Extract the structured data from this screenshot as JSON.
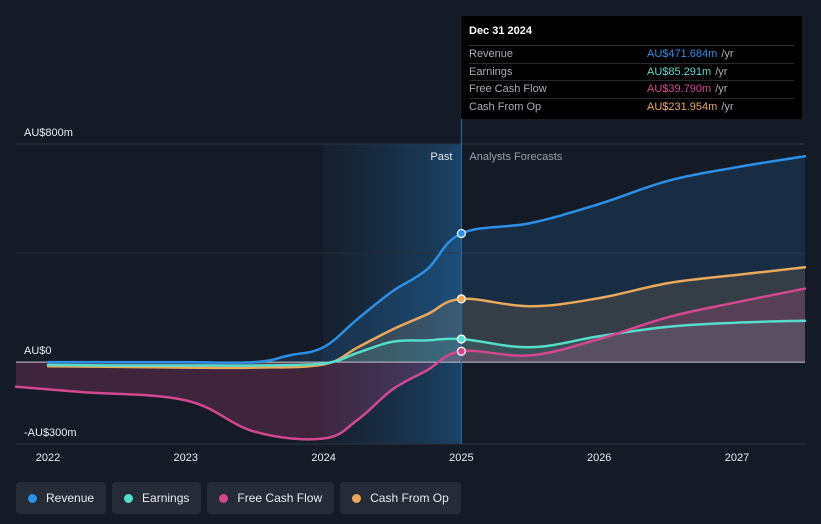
{
  "chart_data": {
    "type": "area",
    "title": "",
    "xlabel": "",
    "ylabel": "",
    "ylim": [
      -300,
      800
    ],
    "divider_x": 2025.0,
    "past_label": "Past",
    "forecast_label": "Analysts Forecasts",
    "y_ticks": [
      {
        "value": 800,
        "label": "AU$800m"
      },
      {
        "value": 0,
        "label": "AU$0"
      },
      {
        "value": -300,
        "label": "-AU$300m"
      }
    ],
    "x_ticks": [
      {
        "value": 2022,
        "label": "2022"
      },
      {
        "value": 2023,
        "label": "2023"
      },
      {
        "value": 2024,
        "label": "2024"
      },
      {
        "value": 2025,
        "label": "2025"
      },
      {
        "value": 2026,
        "label": "2026"
      },
      {
        "value": 2027,
        "label": "2027"
      }
    ],
    "series": [
      {
        "name": "Revenue",
        "key": "revenue",
        "color": "#2d8fe6",
        "points": [
          [
            2022.0,
            0
          ],
          [
            2022.5,
            0
          ],
          [
            2023.0,
            0
          ],
          [
            2023.5,
            0
          ],
          [
            2023.75,
            25
          ],
          [
            2024.0,
            55
          ],
          [
            2024.25,
            160
          ],
          [
            2024.5,
            260
          ],
          [
            2024.75,
            340
          ],
          [
            2025.0,
            472
          ],
          [
            2025.5,
            510
          ],
          [
            2026.0,
            580
          ],
          [
            2026.5,
            665
          ],
          [
            2027.0,
            715
          ],
          [
            2027.5,
            755
          ]
        ]
      },
      {
        "name": "Cash From Op",
        "key": "cfo",
        "color": "#e8a95c",
        "points": [
          [
            2022.0,
            -15
          ],
          [
            2022.5,
            -17
          ],
          [
            2023.0,
            -20
          ],
          [
            2023.5,
            -20
          ],
          [
            2024.0,
            -8
          ],
          [
            2024.25,
            55
          ],
          [
            2024.5,
            120
          ],
          [
            2024.75,
            175
          ],
          [
            2025.0,
            232
          ],
          [
            2025.5,
            205
          ],
          [
            2026.0,
            235
          ],
          [
            2026.5,
            290
          ],
          [
            2027.0,
            320
          ],
          [
            2027.5,
            348
          ]
        ]
      },
      {
        "name": "Earnings",
        "key": "earnings",
        "color": "#56dccb",
        "points": [
          [
            2022.0,
            -10
          ],
          [
            2022.5,
            -12
          ],
          [
            2023.0,
            -12
          ],
          [
            2023.5,
            -12
          ],
          [
            2024.0,
            -5
          ],
          [
            2024.25,
            35
          ],
          [
            2024.5,
            75
          ],
          [
            2024.75,
            80
          ],
          [
            2025.0,
            85
          ],
          [
            2025.5,
            55
          ],
          [
            2026.0,
            95
          ],
          [
            2026.5,
            130
          ],
          [
            2027.0,
            145
          ],
          [
            2027.5,
            152
          ]
        ]
      },
      {
        "name": "Free Cash Flow",
        "key": "fcf",
        "color": "#d2488f",
        "points": [
          [
            2021.75,
            -90
          ],
          [
            2022.25,
            -110
          ],
          [
            2023.0,
            -140
          ],
          [
            2023.5,
            -255
          ],
          [
            2024.0,
            -280
          ],
          [
            2024.25,
            -210
          ],
          [
            2024.5,
            -100
          ],
          [
            2024.75,
            -30
          ],
          [
            2025.0,
            40
          ],
          [
            2025.5,
            25
          ],
          [
            2026.0,
            85
          ],
          [
            2026.5,
            165
          ],
          [
            2027.0,
            220
          ],
          [
            2027.5,
            270
          ]
        ]
      }
    ]
  },
  "tooltip": {
    "date": "Dec 31 2024",
    "unit": "/yr",
    "rows": [
      {
        "label": "Revenue",
        "value": "AU$471.684m",
        "color": "#2d8fe6"
      },
      {
        "label": "Earnings",
        "value": "AU$85.291m",
        "color": "#56dccb"
      },
      {
        "label": "Free Cash Flow",
        "value": "AU$39.790m",
        "color": "#d2488f"
      },
      {
        "label": "Cash From Op",
        "value": "AU$231.954m",
        "color": "#e8a95c"
      }
    ]
  },
  "legend": [
    {
      "label": "Revenue",
      "color": "#2d8fe6"
    },
    {
      "label": "Earnings",
      "color": "#56dccb"
    },
    {
      "label": "Free Cash Flow",
      "color": "#d2488f"
    },
    {
      "label": "Cash From Op",
      "color": "#e8a95c"
    }
  ]
}
